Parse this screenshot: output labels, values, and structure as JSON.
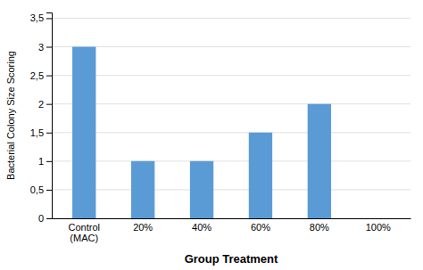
{
  "chart_data": {
    "type": "bar",
    "xlabel": "Group Treatment",
    "ylabel": "Bacterial Colony Size Scoring",
    "categories": [
      "Control\n(MAC)",
      "20%",
      "40%",
      "60%",
      "80%",
      "100%"
    ],
    "values": [
      3.0,
      1.0,
      1.0,
      1.5,
      2.0,
      0.0
    ],
    "color": "#5b9bd5",
    "ylim": [
      0,
      3.6
    ],
    "yticks": [
      0,
      {
        "value": 0.5,
        "label": "0,5"
      },
      1,
      {
        "value": 1.5,
        "label": "1,5"
      },
      2,
      {
        "value": 2.5,
        "label": "2,5"
      },
      3,
      {
        "value": 3.5,
        "label": "3,5"
      }
    ],
    "grid": true
  }
}
